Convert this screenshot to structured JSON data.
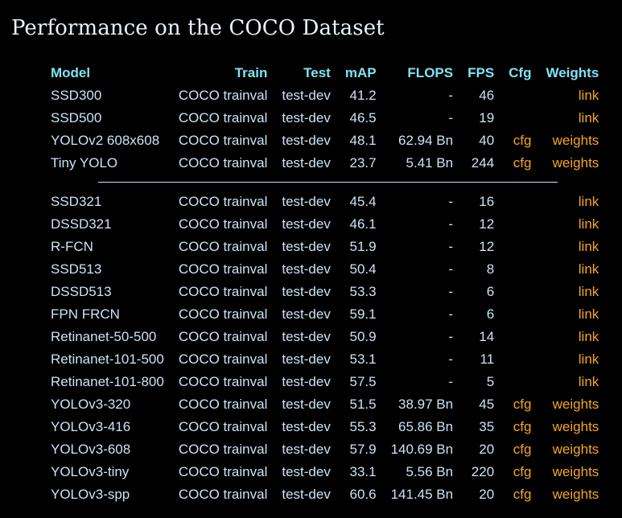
{
  "page": {
    "title": "Performance on the COCO Dataset"
  },
  "colors": {
    "background": "#000000",
    "header": "#7fe3f4",
    "text": "#c9e4f5",
    "link": "#f5a623"
  },
  "table": {
    "headers": [
      "Model",
      "Train",
      "Test",
      "mAP",
      "FLOPS",
      "FPS",
      "Cfg",
      "Weights"
    ],
    "groups": [
      [
        {
          "model": "SSD300",
          "train": "COCO trainval",
          "test": "test-dev",
          "map": "41.2",
          "flops": "-",
          "fps": "46",
          "cfg": "",
          "weights": "link"
        },
        {
          "model": "SSD500",
          "train": "COCO trainval",
          "test": "test-dev",
          "map": "46.5",
          "flops": "-",
          "fps": "19",
          "cfg": "",
          "weights": "link"
        },
        {
          "model": "YOLOv2 608x608",
          "train": "COCO trainval",
          "test": "test-dev",
          "map": "48.1",
          "flops": "62.94 Bn",
          "fps": "40",
          "cfg": "cfg",
          "weights": "weights"
        },
        {
          "model": "Tiny YOLO",
          "train": "COCO trainval",
          "test": "test-dev",
          "map": "23.7",
          "flops": "5.41 Bn",
          "fps": "244",
          "cfg": "cfg",
          "weights": "weights"
        }
      ],
      [
        {
          "model": "SSD321",
          "train": "COCO trainval",
          "test": "test-dev",
          "map": "45.4",
          "flops": "-",
          "fps": "16",
          "cfg": "",
          "weights": "link"
        },
        {
          "model": "DSSD321",
          "train": "COCO trainval",
          "test": "test-dev",
          "map": "46.1",
          "flops": "-",
          "fps": "12",
          "cfg": "",
          "weights": "link"
        },
        {
          "model": "R-FCN",
          "train": "COCO trainval",
          "test": "test-dev",
          "map": "51.9",
          "flops": "-",
          "fps": "12",
          "cfg": "",
          "weights": "link"
        },
        {
          "model": "SSD513",
          "train": "COCO trainval",
          "test": "test-dev",
          "map": "50.4",
          "flops": "-",
          "fps": "8",
          "cfg": "",
          "weights": "link"
        },
        {
          "model": "DSSD513",
          "train": "COCO trainval",
          "test": "test-dev",
          "map": "53.3",
          "flops": "-",
          "fps": "6",
          "cfg": "",
          "weights": "link"
        },
        {
          "model": "FPN FRCN",
          "train": "COCO trainval",
          "test": "test-dev",
          "map": "59.1",
          "flops": "-",
          "fps": "6",
          "cfg": "",
          "weights": "link"
        },
        {
          "model": "Retinanet-50-500",
          "train": "COCO trainval",
          "test": "test-dev",
          "map": "50.9",
          "flops": "-",
          "fps": "14",
          "cfg": "",
          "weights": "link"
        },
        {
          "model": "Retinanet-101-500",
          "train": "COCO trainval",
          "test": "test-dev",
          "map": "53.1",
          "flops": "-",
          "fps": "11",
          "cfg": "",
          "weights": "link"
        },
        {
          "model": "Retinanet-101-800",
          "train": "COCO trainval",
          "test": "test-dev",
          "map": "57.5",
          "flops": "-",
          "fps": "5",
          "cfg": "",
          "weights": "link"
        },
        {
          "model": "YOLOv3-320",
          "train": "COCO trainval",
          "test": "test-dev",
          "map": "51.5",
          "flops": "38.97 Bn",
          "fps": "45",
          "cfg": "cfg",
          "weights": "weights"
        },
        {
          "model": "YOLOv3-416",
          "train": "COCO trainval",
          "test": "test-dev",
          "map": "55.3",
          "flops": "65.86 Bn",
          "fps": "35",
          "cfg": "cfg",
          "weights": "weights"
        },
        {
          "model": "YOLOv3-608",
          "train": "COCO trainval",
          "test": "test-dev",
          "map": "57.9",
          "flops": "140.69 Bn",
          "fps": "20",
          "cfg": "cfg",
          "weights": "weights"
        },
        {
          "model": "YOLOv3-tiny",
          "train": "COCO trainval",
          "test": "test-dev",
          "map": "33.1",
          "flops": "5.56 Bn",
          "fps": "220",
          "cfg": "cfg",
          "weights": "weights"
        },
        {
          "model": "YOLOv3-spp",
          "train": "COCO trainval",
          "test": "test-dev",
          "map": "60.6",
          "flops": "141.45 Bn",
          "fps": "20",
          "cfg": "cfg",
          "weights": "weights"
        }
      ]
    ]
  }
}
